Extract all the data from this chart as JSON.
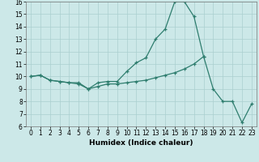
{
  "xlabel": "Humidex (Indice chaleur)",
  "x": [
    0,
    1,
    2,
    3,
    4,
    5,
    6,
    7,
    8,
    9,
    10,
    11,
    12,
    13,
    14,
    15,
    16,
    17,
    18,
    19,
    20,
    21,
    22,
    23
  ],
  "line1": [
    10.0,
    10.1,
    9.7,
    9.6,
    9.5,
    9.5,
    9.0,
    9.5,
    9.6,
    9.6,
    10.4,
    11.1,
    11.5,
    13.0,
    13.8,
    16.0,
    16.0,
    14.8,
    11.6,
    null,
    null,
    null,
    null,
    null
  ],
  "line2": [
    10.0,
    10.1,
    9.7,
    9.6,
    9.5,
    9.4,
    9.0,
    9.2,
    9.4,
    9.4,
    9.5,
    9.6,
    9.7,
    9.9,
    10.1,
    10.3,
    10.6,
    11.0,
    11.6,
    9.0,
    8.0,
    8.0,
    6.3,
    7.8
  ],
  "ylim": [
    6,
    16
  ],
  "xlim": [
    -0.5,
    23.5
  ],
  "yticks": [
    6,
    7,
    8,
    9,
    10,
    11,
    12,
    13,
    14,
    15,
    16
  ],
  "xticks": [
    0,
    1,
    2,
    3,
    4,
    5,
    6,
    7,
    8,
    9,
    10,
    11,
    12,
    13,
    14,
    15,
    16,
    17,
    18,
    19,
    20,
    21,
    22,
    23
  ],
  "line_color": "#2e7d6e",
  "bg_color": "#cce8e8",
  "grid_color": "#aacfcf",
  "tick_fontsize": 5.5,
  "label_fontsize": 6.5
}
